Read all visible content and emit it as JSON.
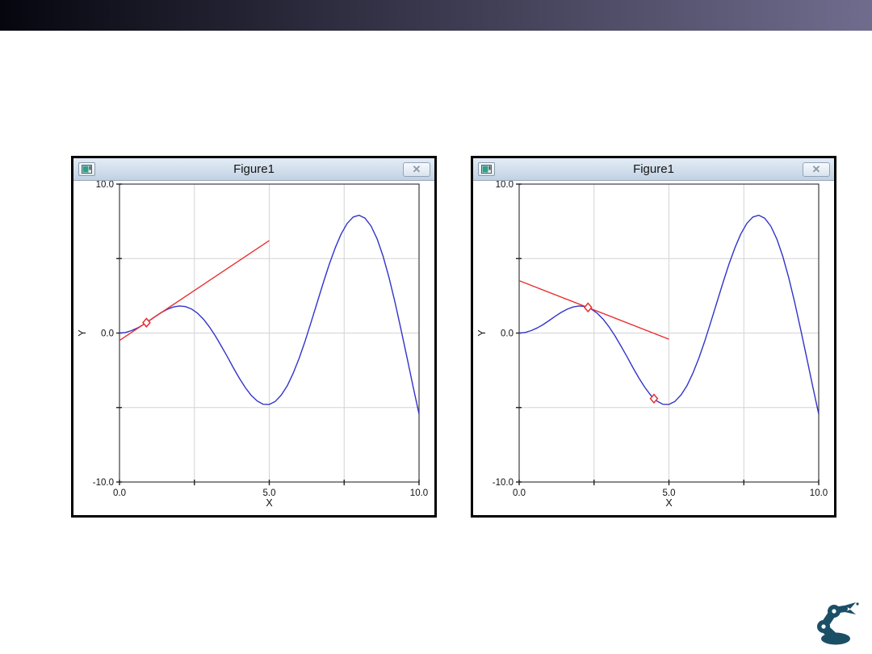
{
  "top_bar": {
    "gradient_start": "#06060f",
    "gradient_end": "#706c8e"
  },
  "logo": {
    "label": "robot-arm-logo",
    "color": "#1b4f66"
  },
  "windows": [
    {
      "title": "Figure1",
      "close_glyph": "✕",
      "chart_data": {
        "type": "line",
        "title": "",
        "xlabel": "X",
        "ylabel": "Y",
        "xlim": [
          0,
          10
        ],
        "ylim": [
          -10,
          10
        ],
        "grid": true,
        "grid_x": [
          2.5,
          5,
          7.5
        ],
        "grid_y": [
          5,
          0,
          -5
        ],
        "x_ticks": [
          {
            "v": 0,
            "label": "0.0"
          },
          {
            "v": 2.5
          },
          {
            "v": 5,
            "label": "5.0"
          },
          {
            "v": 7.5
          },
          {
            "v": 10,
            "label": "10.0"
          }
        ],
        "y_ticks": [
          {
            "v": 10,
            "label": "10.0"
          },
          {
            "v": 5
          },
          {
            "v": 0,
            "label": "0.0"
          },
          {
            "v": -5
          },
          {
            "v": -10,
            "label": "-10.0"
          }
        ],
        "series": [
          {
            "name": "curve",
            "color": "#3333cc",
            "x": [
              0,
              0.2,
              0.4,
              0.6,
              0.8,
              1,
              1.2,
              1.4,
              1.6,
              1.8,
              2,
              2.2,
              2.4,
              2.6,
              2.8,
              3,
              3.2,
              3.4,
              3.6,
              3.8,
              4,
              4.2,
              4.4,
              4.6,
              4.8,
              5,
              5.2,
              5.4,
              5.6,
              5.8,
              6,
              6.2,
              6.4,
              6.6,
              6.8,
              7,
              7.2,
              7.4,
              7.6,
              7.8,
              8,
              8.2,
              8.4,
              8.6,
              8.8,
              9,
              9.2,
              9.4,
              9.6,
              9.8,
              10
            ],
            "y": [
              0,
              0.04,
              0.16,
              0.34,
              0.57,
              0.84,
              1.12,
              1.38,
              1.6,
              1.75,
              1.82,
              1.78,
              1.62,
              1.34,
              0.94,
              0.42,
              -0.19,
              -0.87,
              -1.59,
              -2.33,
              -3.03,
              -3.66,
              -4.19,
              -4.57,
              -4.78,
              -4.79,
              -4.59,
              -4.17,
              -3.54,
              -2.69,
              -1.68,
              -0.52,
              0.75,
              2.06,
              3.36,
              4.6,
              5.71,
              6.65,
              7.36,
              7.79,
              7.91,
              7.71,
              7.18,
              6.32,
              5.15,
              3.71,
              2.05,
              0.23,
              -1.67,
              -3.59,
              -5.44
            ]
          },
          {
            "name": "tangent-line",
            "color": "#e62e2e",
            "x": [
              0,
              5
            ],
            "y": [
              -0.5,
              6.21
            ]
          }
        ],
        "markers": [
          {
            "x": 0.9,
            "y": 0.7,
            "shape": "open-diamond",
            "color": "#e62e2e"
          }
        ]
      }
    },
    {
      "title": "Figure1",
      "close_glyph": "✕",
      "chart_data": {
        "type": "line",
        "title": "",
        "xlabel": "X",
        "ylabel": "Y",
        "xlim": [
          0,
          10
        ],
        "ylim": [
          -10,
          10
        ],
        "grid": true,
        "grid_x": [
          2.5,
          5,
          7.5
        ],
        "grid_y": [
          5,
          0,
          -5
        ],
        "x_ticks": [
          {
            "v": 0,
            "label": "0.0"
          },
          {
            "v": 2.5
          },
          {
            "v": 5,
            "label": "5.0"
          },
          {
            "v": 7.5
          },
          {
            "v": 10,
            "label": "10.0"
          }
        ],
        "y_ticks": [
          {
            "v": 10,
            "label": "10.0"
          },
          {
            "v": 5
          },
          {
            "v": 0,
            "label": "0.0"
          },
          {
            "v": -5
          },
          {
            "v": -10,
            "label": "-10.0"
          }
        ],
        "series": [
          {
            "name": "curve",
            "color": "#3333cc",
            "x": [
              0,
              0.2,
              0.4,
              0.6,
              0.8,
              1,
              1.2,
              1.4,
              1.6,
              1.8,
              2,
              2.2,
              2.4,
              2.6,
              2.8,
              3,
              3.2,
              3.4,
              3.6,
              3.8,
              4,
              4.2,
              4.4,
              4.6,
              4.8,
              5,
              5.2,
              5.4,
              5.6,
              5.8,
              6,
              6.2,
              6.4,
              6.6,
              6.8,
              7,
              7.2,
              7.4,
              7.6,
              7.8,
              8,
              8.2,
              8.4,
              8.6,
              8.8,
              9,
              9.2,
              9.4,
              9.6,
              9.8,
              10
            ],
            "y": [
              0,
              0.04,
              0.16,
              0.34,
              0.57,
              0.84,
              1.12,
              1.38,
              1.6,
              1.75,
              1.82,
              1.78,
              1.62,
              1.34,
              0.94,
              0.42,
              -0.19,
              -0.87,
              -1.59,
              -2.33,
              -3.03,
              -3.66,
              -4.19,
              -4.57,
              -4.78,
              -4.79,
              -4.59,
              -4.17,
              -3.54,
              -2.69,
              -1.68,
              -0.52,
              0.75,
              2.06,
              3.36,
              4.6,
              5.71,
              6.65,
              7.36,
              7.79,
              7.91,
              7.71,
              7.18,
              6.32,
              5.15,
              3.71,
              2.05,
              0.23,
              -1.67,
              -3.59,
              -5.44
            ]
          },
          {
            "name": "tangent-line",
            "color": "#e62e2e",
            "x": [
              0,
              5
            ],
            "y": [
              3.52,
              -0.41
            ]
          }
        ],
        "markers": [
          {
            "x": 2.3,
            "y": 1.72,
            "shape": "open-diamond",
            "color": "#e62e2e"
          },
          {
            "x": 4.5,
            "y": -4.4,
            "shape": "open-diamond",
            "color": "#e62e2e"
          }
        ]
      }
    }
  ]
}
